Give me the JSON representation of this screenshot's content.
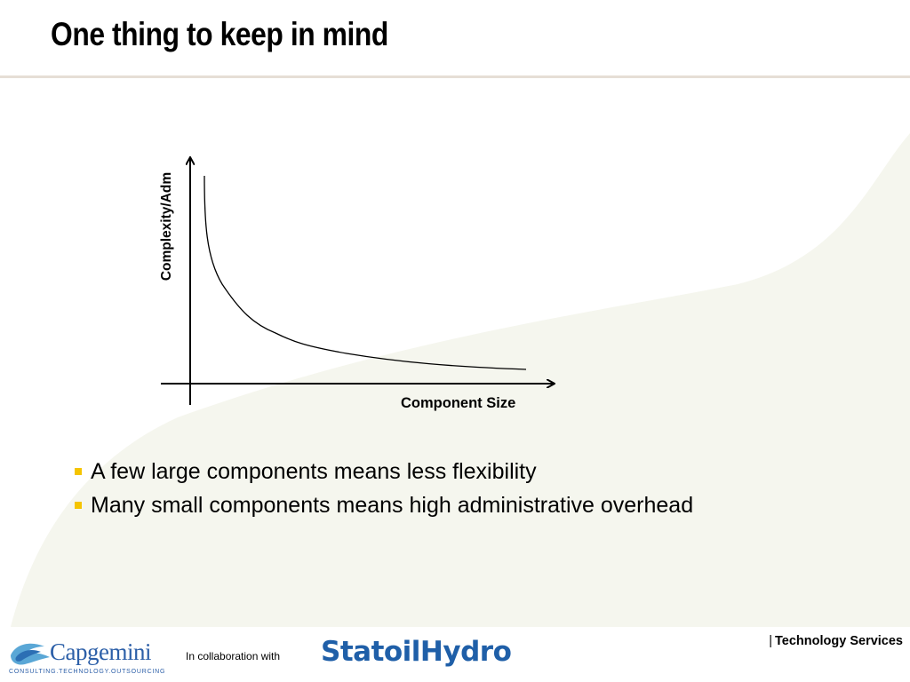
{
  "slide": {
    "title": "One thing to keep in mind"
  },
  "diagram": {
    "y_axis_label": "Complexity/Adm",
    "x_axis_label": "Component Size",
    "curve_shape": "decreasing-hyperbolic"
  },
  "bullets": [
    {
      "text": "A few large components means less flexibility"
    },
    {
      "text": "Many small components means high administrative overhead"
    }
  ],
  "footer": {
    "capgemini_name": "Capgemini",
    "capgemini_tagline": "CONSULTING.TECHNOLOGY.OUTSOURCING",
    "collaboration_text": "In collaboration with",
    "partner_name": "StatoilHydro",
    "separator": "|",
    "division": "Technology Services"
  },
  "colors": {
    "bullet_marker": "#f5c400",
    "swoosh": "#f5f6ee",
    "title_rule": "#e6ded6",
    "capgemini_blue": "#2c5fa8",
    "statoil_blue": "#1f5fa8"
  },
  "icons": {
    "bullet_marker": "square-bullet-icon",
    "capgemini_mark": "spade-swirl-icon"
  }
}
